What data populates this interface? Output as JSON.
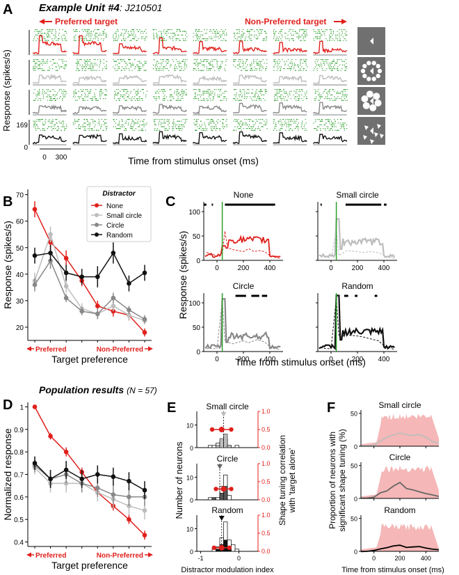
{
  "panel_letters": {
    "a": "A",
    "b": "B",
    "c": "C",
    "d": "D",
    "e": "E",
    "f": "F"
  },
  "colors": {
    "none": "#e0201c",
    "small_circle": "#bdbdbd",
    "circle": "#888888",
    "random": "#111111",
    "dots": "#2a9d2a",
    "shade": "#f5b7b7",
    "stim": "#707070"
  },
  "panel_a": {
    "title_bold": "Example Unit #4",
    "title_rest": ": J210501",
    "pref_label": "Preferred target",
    "nonpref_label": "Non-Preferred target",
    "ylabel": "Response (spikes/s)",
    "xlabel": "Time from stimulus onset (ms)",
    "y_ticks": [
      "169",
      "0"
    ],
    "x_ticks": [
      "0",
      "300"
    ],
    "conditions": [
      "None",
      "Small circle",
      "Circle",
      "Random"
    ],
    "n_targets": 8
  },
  "chart_data": [
    {
      "panel": "B",
      "type": "line",
      "title": "Distractor",
      "xlabel": "Target preference",
      "ylabel": "Response (spikes/s)",
      "x_left": "Preferred",
      "x_right": "Non-Preferred",
      "ylim": [
        15,
        72
      ],
      "yticks": [
        20,
        30,
        40,
        50,
        60,
        70
      ],
      "categories": [
        1,
        2,
        3,
        4,
        5,
        6,
        7,
        8
      ],
      "series": [
        {
          "name": "None",
          "values": [
            64.5,
            52,
            46,
            37.5,
            28,
            26,
            24.5,
            18
          ],
          "err": [
            3,
            3,
            3,
            2,
            2,
            2,
            2,
            1.5
          ]
        },
        {
          "name": "Small circle",
          "values": [
            37.5,
            55,
            35.5,
            27,
            25,
            28,
            24.5,
            22.5
          ],
          "err": [
            3,
            3,
            2.5,
            2,
            2,
            2,
            2,
            1.5
          ]
        },
        {
          "name": "Circle",
          "values": [
            36,
            45,
            31,
            26,
            25,
            31,
            26.5,
            23
          ],
          "err": [
            2.5,
            3,
            1.5,
            1.5,
            2,
            2,
            1.5,
            1.5
          ]
        },
        {
          "name": "Random",
          "values": [
            47,
            48,
            40.5,
            39,
            39,
            48,
            36.5,
            40.5
          ],
          "err": [
            3,
            3,
            3,
            3,
            4,
            4,
            3,
            3
          ]
        }
      ]
    },
    {
      "panel": "C",
      "type": "line",
      "xlabel": "Time from stimulus onset (ms)",
      "ylabel": "Response (spikes/s)",
      "ylim": [
        0,
        120
      ],
      "xlim": [
        -100,
        500
      ],
      "xticks": [
        0,
        200,
        400
      ],
      "yticks": [
        0,
        50,
        100
      ],
      "subplots": [
        {
          "name": "None",
          "onset_peak": 30,
          "plateau": 42,
          "dashed": [
            -80,
            16,
            -40,
            14,
            0,
            8,
            40,
            12,
            60,
            60,
            80,
            26,
            120,
            22,
            160,
            20,
            200,
            18,
            240,
            24,
            280,
            18,
            320,
            20,
            360,
            18,
            400,
            10,
            440,
            6,
            480,
            4
          ]
        },
        {
          "name": "Small circle",
          "onset_peak": 85,
          "plateau": 38,
          "dashed": [
            -80,
            8,
            -40,
            6,
            0,
            6,
            40,
            60,
            60,
            10,
            120,
            20,
            200,
            18,
            240,
            16,
            300,
            18,
            360,
            16,
            400,
            10,
            440,
            6,
            480,
            4
          ]
        },
        {
          "name": "Circle",
          "onset_peak": 108,
          "plateau": 32,
          "dashed": [
            -80,
            6,
            -40,
            6,
            0,
            6,
            40,
            105,
            60,
            20,
            120,
            16,
            200,
            22,
            240,
            18,
            300,
            24,
            360,
            20,
            400,
            10,
            440,
            6,
            480,
            4
          ]
        },
        {
          "name": "Random",
          "onset_peak": 115,
          "plateau": 40,
          "dashed": [
            -80,
            8,
            -40,
            6,
            0,
            6,
            40,
            110,
            60,
            30,
            120,
            34,
            200,
            32,
            240,
            30,
            300,
            26,
            360,
            22,
            400,
            12,
            440,
            8,
            480,
            4
          ]
        }
      ]
    },
    {
      "panel": "D",
      "type": "line",
      "title": "Population results",
      "subtitle": "(N = 57)",
      "xlabel": "Target preference",
      "ylabel": "Normalized response",
      "x_left": "Preferred",
      "x_right": "Non-Preferred",
      "ylim": [
        0.38,
        1.02
      ],
      "yticks": [
        0.4,
        0.5,
        0.6,
        0.7,
        0.8,
        0.9,
        1.0
      ],
      "categories": [
        1,
        2,
        3,
        4,
        5,
        6,
        7,
        8
      ],
      "series": [
        {
          "name": "None",
          "values": [
            1.0,
            0.87,
            0.8,
            0.71,
            0.62,
            0.56,
            0.5,
            0.43
          ],
          "err": [
            0.01,
            0.015,
            0.02,
            0.02,
            0.02,
            0.02,
            0.02,
            0.02
          ]
        },
        {
          "name": "Small circle",
          "values": [
            0.73,
            0.66,
            0.66,
            0.66,
            0.62,
            0.59,
            0.56,
            0.54
          ],
          "err": [
            0.03,
            0.04,
            0.04,
            0.04,
            0.04,
            0.04,
            0.04,
            0.04
          ]
        },
        {
          "name": "Circle",
          "values": [
            0.74,
            0.68,
            0.7,
            0.66,
            0.64,
            0.61,
            0.6,
            0.6
          ],
          "err": [
            0.03,
            0.04,
            0.04,
            0.04,
            0.04,
            0.04,
            0.04,
            0.04
          ]
        },
        {
          "name": "Random",
          "values": [
            0.75,
            0.68,
            0.72,
            0.68,
            0.7,
            0.69,
            0.67,
            0.63
          ],
          "err": [
            0.03,
            0.04,
            0.04,
            0.04,
            0.04,
            0.04,
            0.04,
            0.04
          ]
        }
      ]
    },
    {
      "panel": "E",
      "type": "bar",
      "xlabel": "Distractor modulation index",
      "ylabel": "Number of neurons",
      "ylabel_right": "Shape tuning correlation with 'target alone'",
      "xticks": [
        -1,
        0
      ],
      "yticks": [
        0,
        10
      ],
      "yticks_right": [
        0,
        0.5,
        1.0
      ],
      "bin_edges": [
        -1.0,
        -0.9,
        -0.8,
        -0.7,
        -0.6,
        -0.5,
        -0.4,
        -0.3,
        -0.2,
        -0.1,
        0.0
      ],
      "subplots": [
        {
          "name": "Small circle",
          "open": [
            0,
            0,
            1,
            1,
            2,
            3,
            4,
            1,
            0,
            1
          ],
          "filled": [
            0,
            0,
            0,
            0,
            1,
            4,
            6,
            1,
            0,
            0
          ],
          "marker": -0.4,
          "corr_x": [
            -0.7,
            -0.45,
            -0.2
          ],
          "corr_y": [
            0.5,
            0.5,
            0.5
          ]
        },
        {
          "name": "Circle",
          "open": [
            0,
            0,
            1,
            1,
            1,
            6,
            11,
            2,
            0,
            0
          ],
          "filled": [
            0,
            0,
            0,
            1,
            0,
            3,
            6,
            0,
            0,
            0
          ],
          "marker": -0.5,
          "corr_x": [
            -0.6,
            -0.4,
            -0.2
          ],
          "corr_y": [
            0.3,
            0.3,
            0.3
          ]
        },
        {
          "name": "Random",
          "open": [
            0,
            0,
            0,
            1,
            2,
            6,
            13,
            5,
            3,
            1
          ],
          "filled": [
            0,
            0,
            0,
            0,
            1,
            3,
            5,
            1,
            0,
            0
          ],
          "marker": -0.45,
          "corr_x": [
            -0.65,
            -0.45,
            -0.25
          ],
          "corr_y": [
            0.1,
            0.1,
            0.1
          ]
        }
      ]
    },
    {
      "panel": "F",
      "type": "area",
      "xlabel": "Time from stimulus onset (ms)",
      "ylabel": "Proportion of neurons with significant shape tuning (%)",
      "xlim": [
        -100,
        500
      ],
      "xticks": [
        0,
        200,
        400
      ],
      "yticks": [
        0,
        50
      ],
      "subplots": [
        {
          "name": "Small circle",
          "shade_top": 48,
          "line": [
            -100,
            0,
            -50,
            1,
            0,
            2,
            50,
            8,
            100,
            14,
            150,
            18,
            200,
            20,
            250,
            18,
            300,
            16,
            350,
            17,
            400,
            14,
            450,
            8,
            500,
            4
          ]
        },
        {
          "name": "Circle",
          "shade_top": 48,
          "line": [
            -100,
            0,
            -50,
            1,
            0,
            2,
            50,
            8,
            100,
            12,
            150,
            18,
            200,
            24,
            250,
            16,
            300,
            12,
            350,
            10,
            400,
            8,
            450,
            6,
            500,
            4
          ]
        },
        {
          "name": "Random",
          "shade_top": 40,
          "line": [
            -100,
            0,
            -50,
            1,
            0,
            2,
            50,
            4,
            100,
            6,
            150,
            8,
            200,
            10,
            250,
            6,
            300,
            6,
            350,
            8,
            400,
            6,
            450,
            4,
            500,
            2
          ]
        }
      ]
    }
  ]
}
